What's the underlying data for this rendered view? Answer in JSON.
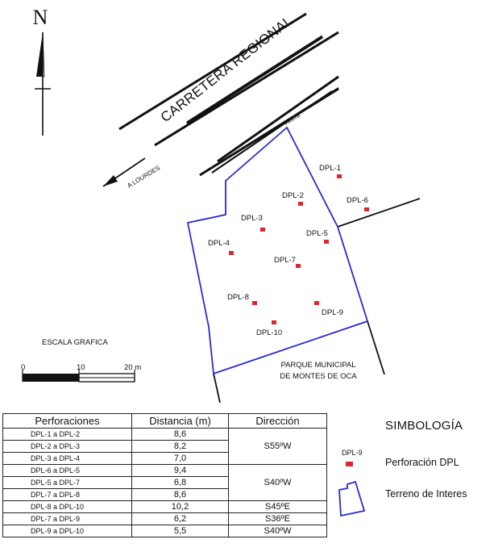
{
  "map": {
    "north_label": "N",
    "road_label": "CARRETERA REGIONAL",
    "sidewalk_label": "Acera",
    "direction_label": "A  LOURDES",
    "park_label_line1": "PARQUE MUNICIPAL",
    "park_label_line2": "DE MONTES DE OCA",
    "scale": {
      "title": "ESCALA GRAFICA",
      "tick_0": "0",
      "tick_10": "10",
      "tick_20": "20 m"
    },
    "boreholes": [
      {
        "id": "DPL-1"
      },
      {
        "id": "DPL-2"
      },
      {
        "id": "DPL-3"
      },
      {
        "id": "DPL-4"
      },
      {
        "id": "DPL-5"
      },
      {
        "id": "DPL-6"
      },
      {
        "id": "DPL-7"
      },
      {
        "id": "DPL-8"
      },
      {
        "id": "DPL-9"
      },
      {
        "id": "DPL-10"
      }
    ],
    "colors": {
      "boundary": "#2a2ad0",
      "borehole": "#e0262d",
      "lines": "#111111"
    }
  },
  "table": {
    "headers": [
      "Perforaciones",
      "Distancia (m)",
      "Dirección"
    ],
    "rows": [
      {
        "pair": "DPL-1 a DPL-2",
        "distance": "8,6"
      },
      {
        "pair": "DPL-2 a DPL-3",
        "distance": "8,2"
      },
      {
        "pair": "DPL-3 a DPL-4",
        "distance": "7,0"
      },
      {
        "pair": "DPL-6 a DPL-5",
        "distance": "9,4"
      },
      {
        "pair": "DPL-5 a DPL-7",
        "distance": "6,8"
      },
      {
        "pair": "DPL-7 a DPL-8",
        "distance": "8,6"
      },
      {
        "pair": "DPL-8 a DPL-10",
        "distance": "10,2"
      },
      {
        "pair": "DPL-7 a DPL-9",
        "distance": "6,2"
      },
      {
        "pair": "DPL-9 a DPL-10",
        "distance": "5,5"
      }
    ],
    "directions": [
      "S55ºW",
      "S40ºW",
      "S45ºE",
      "S36ºE",
      "S40ºW"
    ]
  },
  "legend": {
    "title": "SIMBOLOGÍA",
    "sample_label": "DPL-9",
    "item_borehole": "Perforación DPL",
    "item_terrain": "Terreno de Interes"
  }
}
